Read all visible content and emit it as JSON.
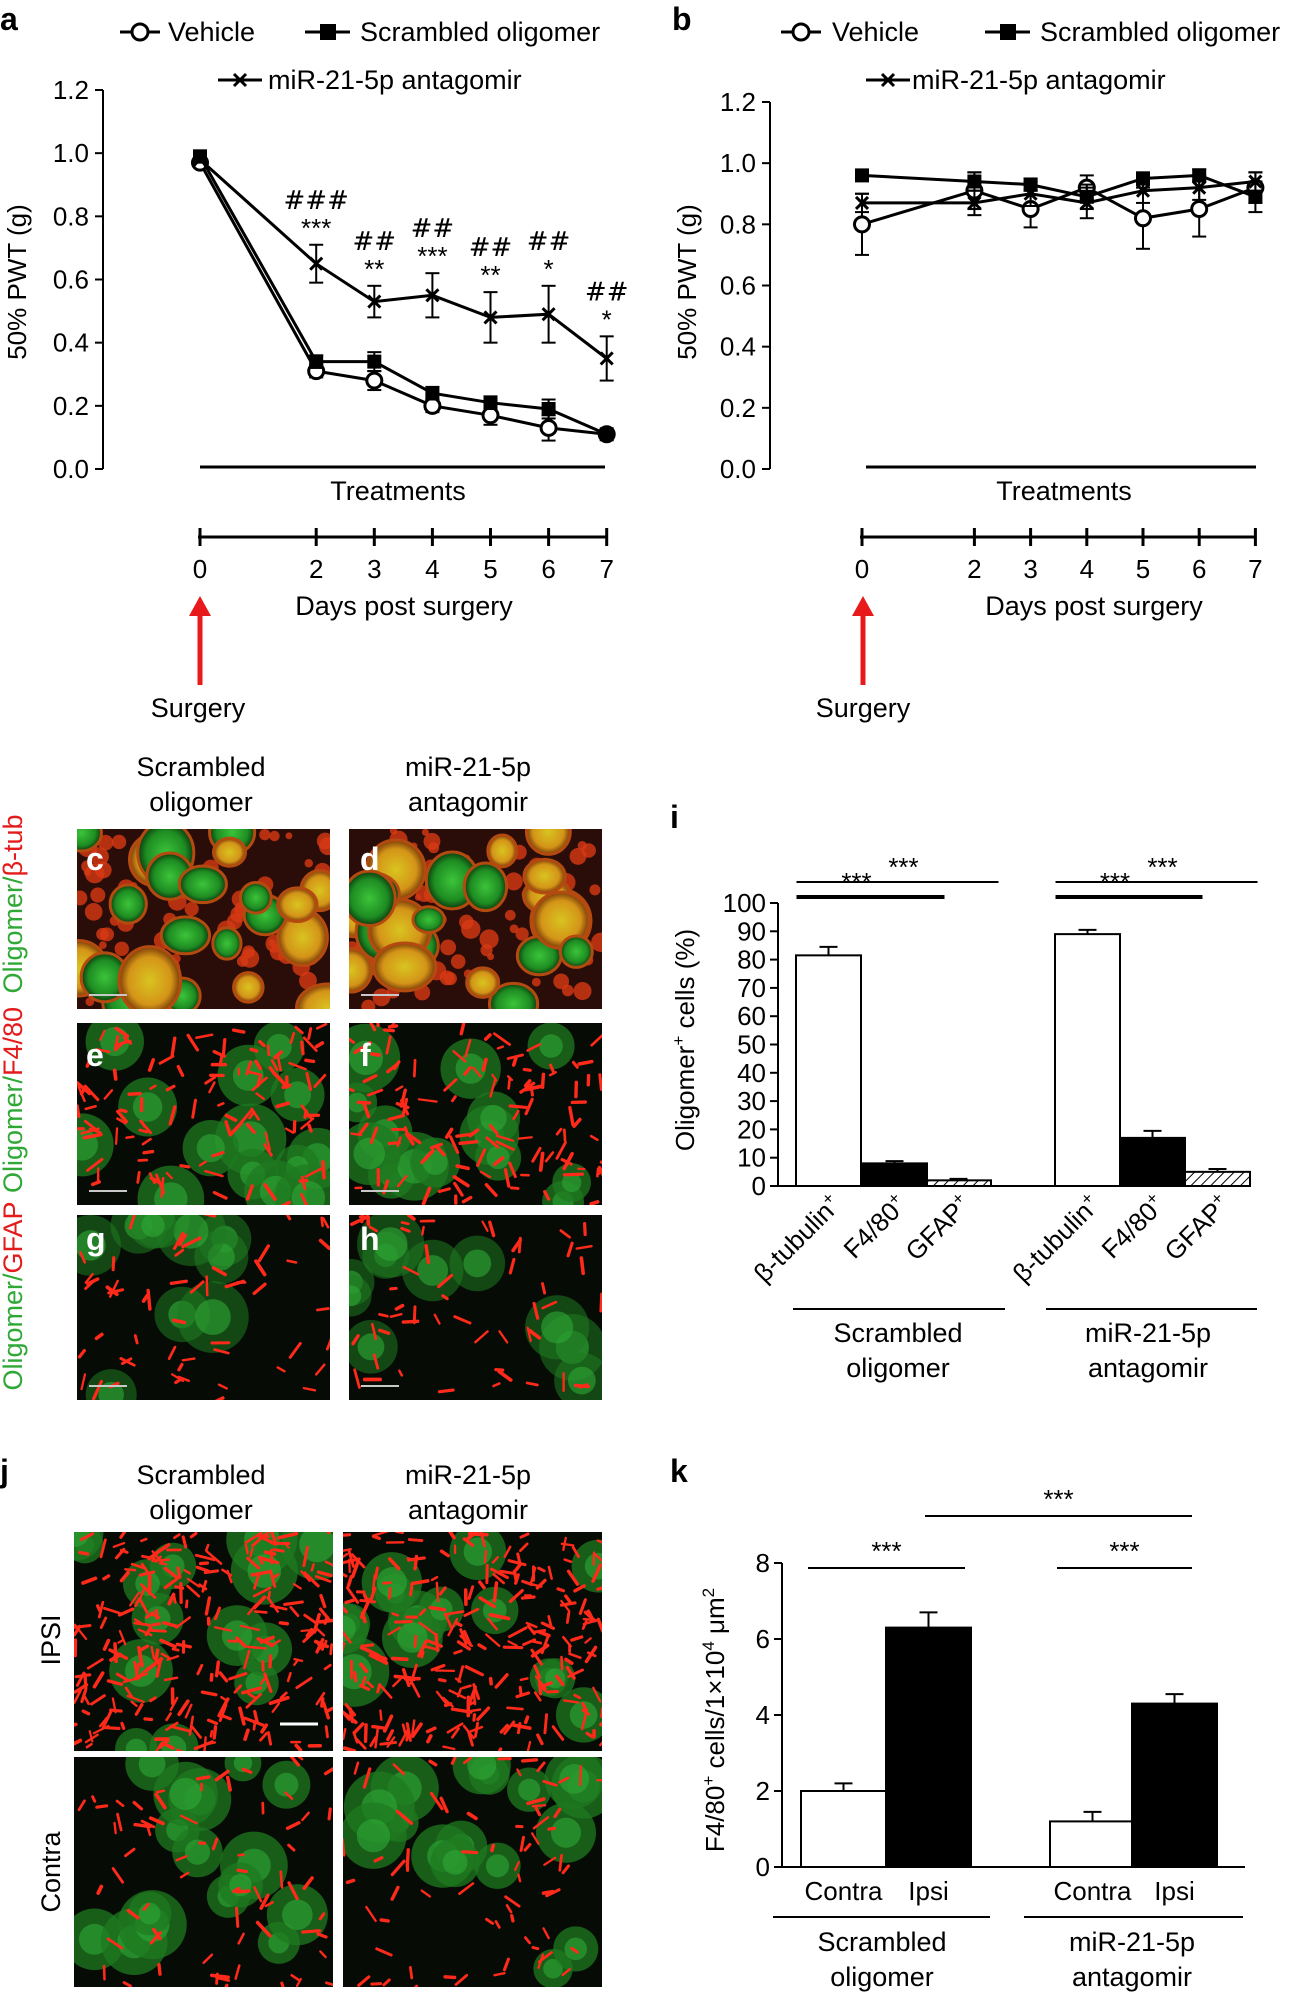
{
  "panel_letters": {
    "a": "a",
    "b": "b",
    "i": "i",
    "j": "j",
    "k": "k",
    "c": "c",
    "d": "d",
    "e": "e",
    "f": "f",
    "g": "g",
    "h": "h"
  },
  "legend": {
    "vehicle": "Vehicle",
    "scrambled": "Scrambled oligomer",
    "antagomir": "miR-21-5p antagomir"
  },
  "timeline": {
    "treatments": "Treatments",
    "days_label": "Days post surgery",
    "surgery": "Surgery",
    "ticks": [
      "0",
      "2",
      "3",
      "4",
      "5",
      "6",
      "7"
    ]
  },
  "micro_labels": {
    "col_scrambled_1": "Scrambled",
    "col_scrambled_2": "oligomer",
    "col_antagomir_1": "miR-21-5p",
    "col_antagomir_2": "antagomir",
    "row1_a": "Oligomer/",
    "row1_b": "β-tub",
    "row2_a": "Oligomer/",
    "row2_b": "F4/80",
    "row3_a": "Oligomer/",
    "row3_b": "GFAP",
    "ipsi": "IPSI",
    "contra": "Contra"
  },
  "group_labels": {
    "scrambled_1": "Scrambled",
    "scrambled_2": "oligomer",
    "antagomir_1": "miR-21-5p",
    "antagomir_2": "antagomir"
  },
  "colors": {
    "green": "#2fa836",
    "red": "#e31b1b",
    "arrow": "#e8191a"
  },
  "chart_data": [
    {
      "id": "a",
      "type": "line",
      "ylabel": "50% PWT (g)",
      "ylim": [
        0,
        1.2
      ],
      "yticks": [
        "0.0",
        "0.2",
        "0.4",
        "0.6",
        "0.8",
        "1.0",
        "1.2"
      ],
      "x": [
        0,
        2,
        3,
        4,
        5,
        6,
        7
      ],
      "series": [
        {
          "name": "Vehicle",
          "marker": "circle",
          "values": [
            0.97,
            0.31,
            0.28,
            0.2,
            0.17,
            0.13,
            0.11
          ],
          "err": [
            0.01,
            0.02,
            0.03,
            0.02,
            0.03,
            0.04,
            0.01
          ]
        },
        {
          "name": "Scrambled oligomer",
          "marker": "square",
          "values": [
            0.99,
            0.34,
            0.34,
            0.24,
            0.21,
            0.19,
            0.11
          ],
          "err": [
            0.01,
            0.02,
            0.03,
            0.02,
            0.02,
            0.03,
            0.01
          ]
        },
        {
          "name": "miR-21-5p antagomir",
          "marker": "x",
          "values": [
            0.98,
            0.65,
            0.53,
            0.55,
            0.48,
            0.49,
            0.35
          ],
          "err": [
            0.01,
            0.06,
            0.05,
            0.07,
            0.08,
            0.09,
            0.07
          ]
        }
      ],
      "annotations": [
        {
          "x": 2,
          "hash": "###",
          "star": "***"
        },
        {
          "x": 3,
          "hash": "##",
          "star": "**"
        },
        {
          "x": 4,
          "hash": "##",
          "star": "***"
        },
        {
          "x": 5,
          "hash": "##",
          "star": "**"
        },
        {
          "x": 6,
          "hash": "##",
          "star": "*"
        },
        {
          "x": 7,
          "hash": "##",
          "star": "*"
        }
      ]
    },
    {
      "id": "b",
      "type": "line",
      "ylabel": "50% PWT (g)",
      "ylim": [
        0,
        1.2
      ],
      "yticks": [
        "0.0",
        "0.2",
        "0.4",
        "0.6",
        "0.8",
        "1.0",
        "1.2"
      ],
      "x": [
        0,
        2,
        3,
        4,
        5,
        6,
        7
      ],
      "series": [
        {
          "name": "Vehicle",
          "marker": "circle",
          "values": [
            0.8,
            0.91,
            0.85,
            0.92,
            0.82,
            0.85,
            0.92
          ],
          "err": [
            0.1,
            0.06,
            0.06,
            0.04,
            0.1,
            0.09,
            0.05
          ]
        },
        {
          "name": "Scrambled oligomer",
          "marker": "square",
          "values": [
            0.96,
            0.94,
            0.93,
            0.89,
            0.95,
            0.96,
            0.89
          ],
          "err": [
            0.01,
            0.03,
            0.02,
            0.04,
            0.02,
            0.02,
            0.05
          ]
        },
        {
          "name": "miR-21-5p antagomir",
          "marker": "x",
          "values": [
            0.87,
            0.87,
            0.9,
            0.87,
            0.91,
            0.92,
            0.94
          ],
          "err": [
            0.03,
            0.04,
            0.04,
            0.05,
            0.04,
            0.04,
            0.03
          ]
        }
      ]
    },
    {
      "id": "i",
      "type": "bar",
      "ylabel": "Oligomer+ cells (%)",
      "ylim": [
        0,
        100
      ],
      "yticks": [
        "0",
        "10",
        "20",
        "30",
        "40",
        "50",
        "60",
        "70",
        "80",
        "90",
        "100"
      ],
      "categories": [
        "β-tubulin+",
        "F4/80+",
        "GFAP+",
        "β-tubulin+",
        "F4/80+",
        "GFAP+"
      ],
      "category_base": [
        "β-tubulin",
        "F4/80",
        "GFAP",
        "β-tubulin",
        "F4/80",
        "GFAP"
      ],
      "category_sup": "+",
      "values": [
        81.5,
        8,
        2,
        89,
        17,
        5
      ],
      "err": [
        3,
        0.8,
        0.5,
        1.5,
        2.5,
        1
      ],
      "fills": [
        "white",
        "black",
        "hatch",
        "white",
        "black",
        "hatch"
      ],
      "sig": "***"
    },
    {
      "id": "k",
      "type": "bar",
      "ylabel": "F4/80+ cells/1×104 μm2",
      "ylabel_parts": {
        "a": "F4/80",
        "b": "+",
        "c": " cells/1×10",
        "d": "4",
        "e": " μm",
        "f": "2"
      },
      "ylim": [
        0,
        8
      ],
      "yticks": [
        "0",
        "2",
        "4",
        "6",
        "8"
      ],
      "categories": [
        "Contra",
        "Ipsi",
        "Contra",
        "Ipsi"
      ],
      "values": [
        2.0,
        6.3,
        1.2,
        4.3
      ],
      "err": [
        0.2,
        0.4,
        0.25,
        0.25
      ],
      "fills": [
        "white",
        "black",
        "white",
        "black"
      ],
      "sig": "***"
    }
  ]
}
